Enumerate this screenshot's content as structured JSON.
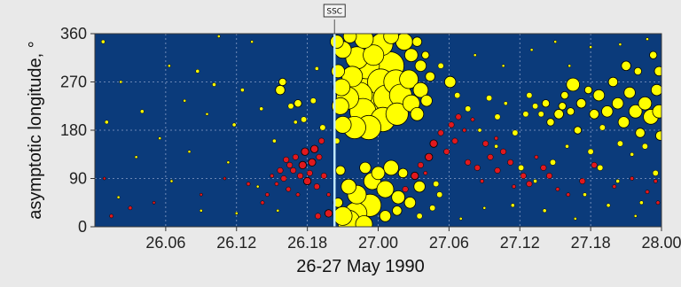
{
  "chart_data": {
    "type": "scatter",
    "title": "",
    "xlabel": "26-27 May 1990",
    "ylabel": "asymptotic longitude, °",
    "x_tick_labels": [
      "26.06",
      "26.12",
      "26.18",
      "27.00",
      "27.06",
      "27.12",
      "27.18",
      "28.00"
    ],
    "y_tick_labels": [
      "0",
      "90",
      "180",
      "270",
      "360"
    ],
    "xlim_hours": [
      0,
      48
    ],
    "ylim": [
      0,
      360
    ],
    "x_tick_hours": [
      6,
      12,
      18,
      24,
      30,
      36,
      42,
      48
    ],
    "y_ticks": [
      0,
      90,
      180,
      270,
      360
    ],
    "grid": true,
    "background_color": "#0b3b7b",
    "marker_colors": {
      "positive": "#ffff00",
      "negative": "#e0191e",
      "outline": "#000000"
    },
    "event_marker": {
      "label": "SSC",
      "x_hour": 20.3,
      "color": "#bfe8ff"
    },
    "series": [
      {
        "sign": "negative",
        "points": [
          [
            19.8,
            25,
            4
          ],
          [
            19.8,
            60,
            2
          ],
          [
            19.4,
            95,
            3
          ],
          [
            19.0,
            130,
            3
          ],
          [
            19.2,
            160,
            3
          ],
          [
            18.6,
            145,
            4
          ],
          [
            18.4,
            120,
            4
          ],
          [
            18.2,
            100,
            3
          ],
          [
            18.0,
            85,
            4
          ],
          [
            17.8,
            140,
            4
          ],
          [
            17.6,
            115,
            4
          ],
          [
            17.4,
            95,
            3
          ],
          [
            17.0,
            130,
            3
          ],
          [
            16.8,
            105,
            3
          ],
          [
            16.5,
            115,
            3
          ],
          [
            16.2,
            125,
            3
          ],
          [
            16.0,
            90,
            3
          ],
          [
            15.7,
            105,
            3
          ],
          [
            15.4,
            80,
            2
          ],
          [
            15.0,
            95,
            2
          ],
          [
            14.6,
            60,
            2
          ],
          [
            14.2,
            45,
            2
          ],
          [
            13.0,
            80,
            2
          ],
          [
            11.0,
            90,
            1.5
          ],
          [
            9.0,
            60,
            1.5
          ],
          [
            5.0,
            45,
            1.5
          ],
          [
            3.0,
            35,
            2
          ],
          [
            1.4,
            20,
            2
          ],
          [
            0.8,
            90,
            1.5
          ],
          [
            18.8,
            75,
            3
          ],
          [
            17.2,
            60,
            2
          ],
          [
            16.4,
            70,
            2.5
          ],
          [
            18.9,
            20,
            3
          ],
          [
            25.8,
            55,
            4
          ],
          [
            26.3,
            70,
            3
          ],
          [
            27.1,
            95,
            4
          ],
          [
            27.6,
            115,
            3
          ],
          [
            28.3,
            130,
            4
          ],
          [
            28.7,
            155,
            4
          ],
          [
            29.3,
            175,
            3
          ],
          [
            29.8,
            140,
            3
          ],
          [
            30.2,
            190,
            3
          ],
          [
            30.8,
            205,
            3
          ],
          [
            31.3,
            180,
            2
          ],
          [
            31.6,
            120,
            3
          ],
          [
            32.4,
            110,
            3
          ],
          [
            32.8,
            85,
            2
          ],
          [
            33.1,
            155,
            3
          ],
          [
            33.5,
            130,
            3
          ],
          [
            34.1,
            105,
            3
          ],
          [
            34.6,
            140,
            3
          ],
          [
            35.2,
            120,
            3
          ],
          [
            35.5,
            75,
            2
          ],
          [
            36.3,
            95,
            3
          ],
          [
            36.8,
            80,
            3
          ],
          [
            37.4,
            130,
            2
          ],
          [
            38.0,
            110,
            3
          ],
          [
            38.5,
            95,
            3
          ],
          [
            39.2,
            70,
            2
          ],
          [
            40.1,
            60,
            2
          ],
          [
            41.3,
            85,
            3
          ],
          [
            42.3,
            115,
            3
          ],
          [
            44.0,
            75,
            2
          ],
          [
            45.5,
            90,
            2
          ],
          [
            46.8,
            65,
            2
          ],
          [
            47.5,
            85,
            2
          ],
          [
            47.7,
            45,
            2
          ],
          [
            26.8,
            40,
            2
          ],
          [
            28.0,
            100,
            2
          ],
          [
            30.5,
            160,
            3
          ],
          [
            32.0,
            200,
            2
          ],
          [
            34.0,
            165,
            2
          ]
        ]
      },
      {
        "sign": "positive",
        "points": [
          [
            20.5,
            345,
            7
          ],
          [
            21.0,
            330,
            9
          ],
          [
            21.6,
            355,
            7
          ],
          [
            22.2,
            315,
            12
          ],
          [
            23.0,
            300,
            14
          ],
          [
            23.6,
            320,
            11
          ],
          [
            24.3,
            340,
            12
          ],
          [
            25.0,
            300,
            15
          ],
          [
            25.5,
            270,
            13
          ],
          [
            24.2,
            270,
            14
          ],
          [
            23.3,
            255,
            16
          ],
          [
            22.4,
            245,
            14
          ],
          [
            21.4,
            240,
            12
          ],
          [
            20.8,
            225,
            9
          ],
          [
            20.9,
            260,
            9
          ],
          [
            21.8,
            280,
            11
          ],
          [
            22.7,
            215,
            14
          ],
          [
            23.6,
            225,
            15
          ],
          [
            24.7,
            240,
            14
          ],
          [
            25.9,
            245,
            12
          ],
          [
            26.6,
            275,
            10
          ],
          [
            25.6,
            210,
            12
          ],
          [
            24.4,
            200,
            13
          ],
          [
            23.2,
            185,
            13
          ],
          [
            22.0,
            185,
            12
          ],
          [
            21.0,
            190,
            9
          ],
          [
            26.8,
            230,
            9
          ],
          [
            27.6,
            255,
            8
          ],
          [
            27.3,
            210,
            7
          ],
          [
            28.1,
            235,
            6
          ],
          [
            28.4,
            280,
            5
          ],
          [
            27.6,
            300,
            6
          ],
          [
            26.8,
            320,
            7
          ],
          [
            26.2,
            345,
            9
          ],
          [
            27.3,
            345,
            5
          ],
          [
            28.0,
            320,
            4
          ],
          [
            22.8,
            350,
            10
          ],
          [
            25.1,
            355,
            8
          ],
          [
            20.6,
            290,
            7
          ],
          [
            20.5,
            160,
            3
          ],
          [
            20.8,
            105,
            5
          ],
          [
            21.5,
            75,
            8
          ],
          [
            22.2,
            60,
            10
          ],
          [
            23.3,
            40,
            12
          ],
          [
            22.1,
            25,
            12
          ],
          [
            21.0,
            20,
            10
          ],
          [
            20.6,
            45,
            5
          ],
          [
            23.5,
            85,
            9
          ],
          [
            24.6,
            70,
            9
          ],
          [
            25.7,
            55,
            7
          ],
          [
            26.7,
            45,
            6
          ],
          [
            27.5,
            75,
            6
          ],
          [
            25.1,
            110,
            8
          ],
          [
            24.0,
            100,
            7
          ],
          [
            22.9,
            110,
            6
          ],
          [
            26.1,
            100,
            5
          ],
          [
            21.5,
            10,
            12
          ],
          [
            22.8,
            5,
            9
          ],
          [
            24.6,
            20,
            6
          ],
          [
            25.6,
            30,
            5
          ],
          [
            27.5,
            20,
            3
          ],
          [
            28.6,
            35,
            3
          ],
          [
            29.2,
            60,
            3
          ],
          [
            28.9,
            80,
            3
          ],
          [
            30.1,
            270,
            6
          ],
          [
            29.3,
            300,
            3
          ],
          [
            30.7,
            245,
            3
          ],
          [
            31.6,
            220,
            3
          ],
          [
            33.4,
            240,
            3
          ],
          [
            34.1,
            205,
            3
          ],
          [
            35.6,
            175,
            3
          ],
          [
            36.5,
            210,
            3
          ],
          [
            37.3,
            225,
            3
          ],
          [
            38.2,
            230,
            4
          ],
          [
            38.6,
            195,
            4
          ],
          [
            39.3,
            210,
            5
          ],
          [
            39.8,
            245,
            4
          ],
          [
            40.3,
            215,
            4
          ],
          [
            40.9,
            180,
            4
          ],
          [
            41.2,
            230,
            5
          ],
          [
            41.8,
            255,
            4
          ],
          [
            42.3,
            210,
            5
          ],
          [
            42.7,
            245,
            6
          ],
          [
            43.4,
            215,
            6
          ],
          [
            43.9,
            270,
            5
          ],
          [
            44.3,
            230,
            6
          ],
          [
            44.8,
            195,
            6
          ],
          [
            45.3,
            250,
            6
          ],
          [
            45.8,
            215,
            7
          ],
          [
            46.2,
            175,
            5
          ],
          [
            46.6,
            230,
            7
          ],
          [
            47.1,
            205,
            8
          ],
          [
            47.6,
            255,
            6
          ],
          [
            47.8,
            215,
            7
          ],
          [
            47.9,
            170,
            5
          ],
          [
            45.0,
            300,
            5
          ],
          [
            46.0,
            290,
            4
          ],
          [
            47.3,
            320,
            4
          ],
          [
            47.8,
            290,
            5
          ],
          [
            40.5,
            265,
            7
          ],
          [
            39.6,
            225,
            4
          ],
          [
            43.0,
            185,
            3
          ],
          [
            44.5,
            155,
            3
          ],
          [
            46.6,
            150,
            3
          ],
          [
            37.8,
            210,
            3
          ],
          [
            36.8,
            245,
            3
          ],
          [
            34.8,
            230,
            2
          ],
          [
            32.6,
            180,
            2
          ],
          [
            34.0,
            150,
            2
          ],
          [
            36.1,
            110,
            3
          ],
          [
            37.3,
            85,
            2
          ],
          [
            38.8,
            120,
            3
          ],
          [
            41.5,
            60,
            2
          ],
          [
            42.8,
            110,
            3
          ],
          [
            44.3,
            85,
            2
          ],
          [
            46.3,
            45,
            2
          ],
          [
            47.5,
            100,
            3
          ],
          [
            45.5,
            135,
            2
          ],
          [
            42.0,
            140,
            3
          ],
          [
            40.0,
            150,
            2
          ],
          [
            15.7,
            255,
            5
          ],
          [
            15.9,
            270,
            4
          ],
          [
            16.6,
            225,
            3
          ],
          [
            17.2,
            230,
            4
          ],
          [
            17.7,
            200,
            3
          ],
          [
            18.5,
            235,
            3
          ],
          [
            19.3,
            185,
            3
          ],
          [
            18.8,
            295,
            2
          ],
          [
            17.0,
            195,
            2
          ],
          [
            12.5,
            255,
            2
          ],
          [
            10.1,
            265,
            2
          ],
          [
            8.7,
            290,
            2
          ],
          [
            6.3,
            300,
            1.5
          ],
          [
            4.0,
            215,
            2
          ],
          [
            2.2,
            270,
            1.5
          ],
          [
            1.0,
            195,
            2
          ],
          [
            0.7,
            345,
            2
          ],
          [
            10.5,
            355,
            1.5
          ],
          [
            13.3,
            345,
            1.5
          ],
          [
            15.2,
            160,
            2
          ],
          [
            11.8,
            190,
            2
          ],
          [
            7.6,
            235,
            1.5
          ],
          [
            9.5,
            210,
            1.5
          ],
          [
            14.1,
            220,
            2
          ],
          [
            3.5,
            130,
            1.5
          ],
          [
            6.5,
            85,
            1.5
          ],
          [
            9.0,
            30,
            1.5
          ],
          [
            12.0,
            25,
            1.5
          ],
          [
            15.5,
            30,
            1.5
          ],
          [
            2.0,
            55,
            1.5
          ],
          [
            5.5,
            165,
            1.5
          ],
          [
            8.0,
            140,
            1.5
          ],
          [
            11.3,
            120,
            1.5
          ],
          [
            13.8,
            75,
            1.5
          ],
          [
            35.4,
            40,
            2
          ],
          [
            38.1,
            30,
            2
          ],
          [
            40.7,
            15,
            1.5
          ],
          [
            43.5,
            40,
            2
          ],
          [
            45.8,
            20,
            1.5
          ],
          [
            33.0,
            35,
            1.5
          ],
          [
            31.0,
            15,
            1.5
          ],
          [
            37.0,
            330,
            1.5
          ],
          [
            39.0,
            345,
            1.5
          ],
          [
            42.0,
            335,
            1.5
          ],
          [
            44.5,
            340,
            1.5
          ],
          [
            46.8,
            350,
            1.5
          ],
          [
            34.6,
            300,
            1.5
          ],
          [
            32.2,
            320,
            1.5
          ],
          [
            40.2,
            300,
            1.5
          ]
        ]
      }
    ]
  }
}
